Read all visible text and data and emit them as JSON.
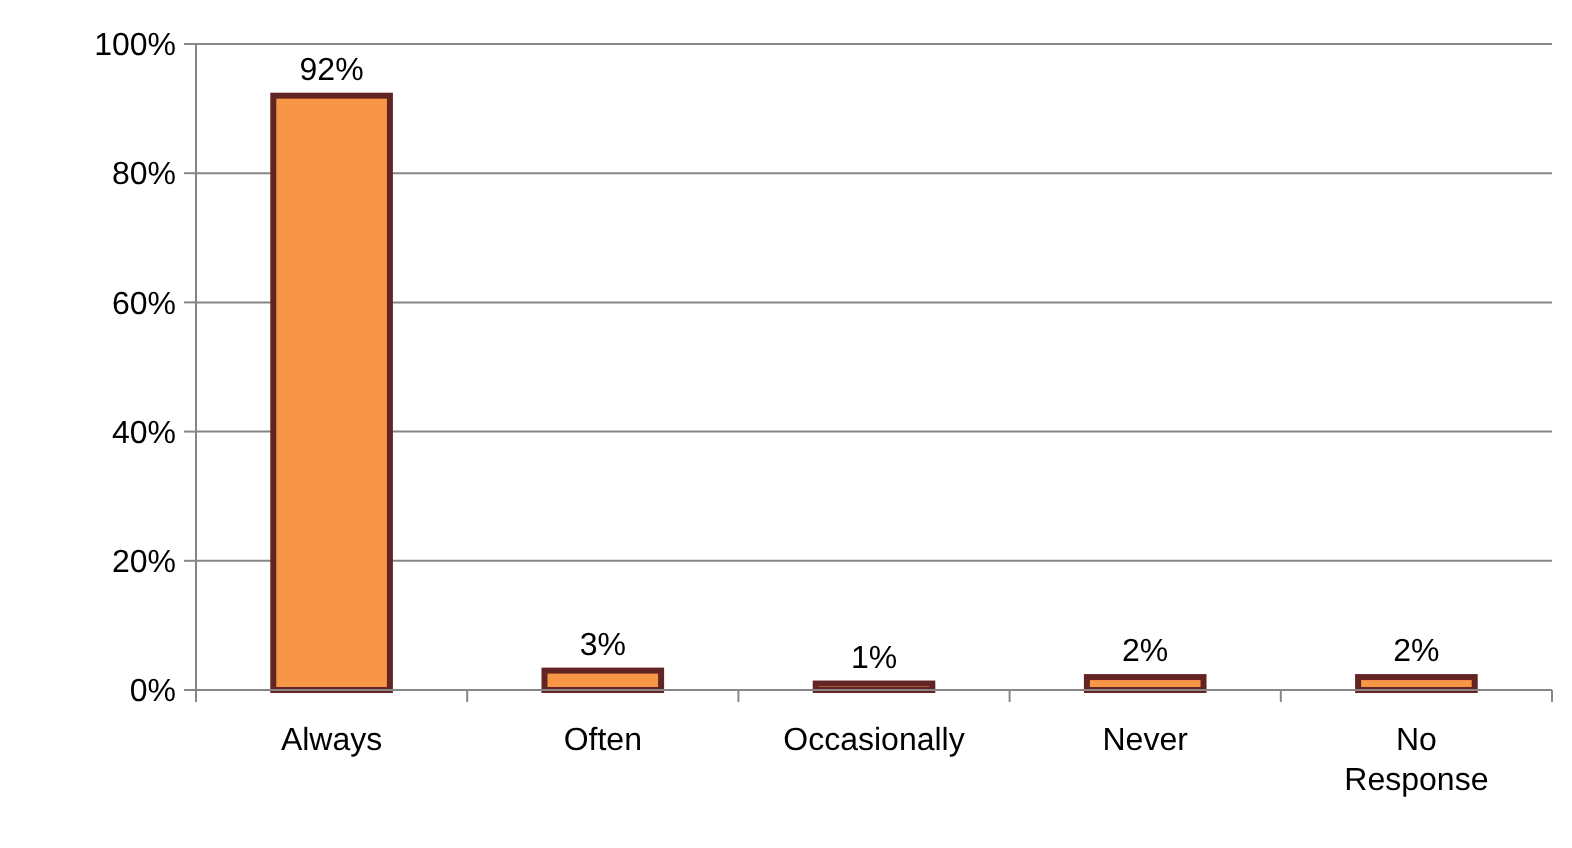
{
  "chart_data": {
    "type": "bar",
    "categories": [
      "Always",
      "Often",
      "Occasionally",
      "Never",
      "No Response"
    ],
    "values": [
      92,
      3,
      1,
      2,
      2
    ],
    "color": "#f79646",
    "value_labels": [
      "92%",
      "3%",
      "1%",
      "2%",
      "2%"
    ],
    "ylim": [
      0,
      100
    ],
    "yticks": [
      {
        "value": 0,
        "label": "0%"
      },
      {
        "value": 20,
        "label": "20%"
      },
      {
        "value": 40,
        "label": "40%"
      },
      {
        "value": 60,
        "label": "60%"
      },
      {
        "value": 80,
        "label": "80%"
      },
      {
        "value": 100,
        "label": "100%"
      }
    ],
    "grid": "y"
  }
}
